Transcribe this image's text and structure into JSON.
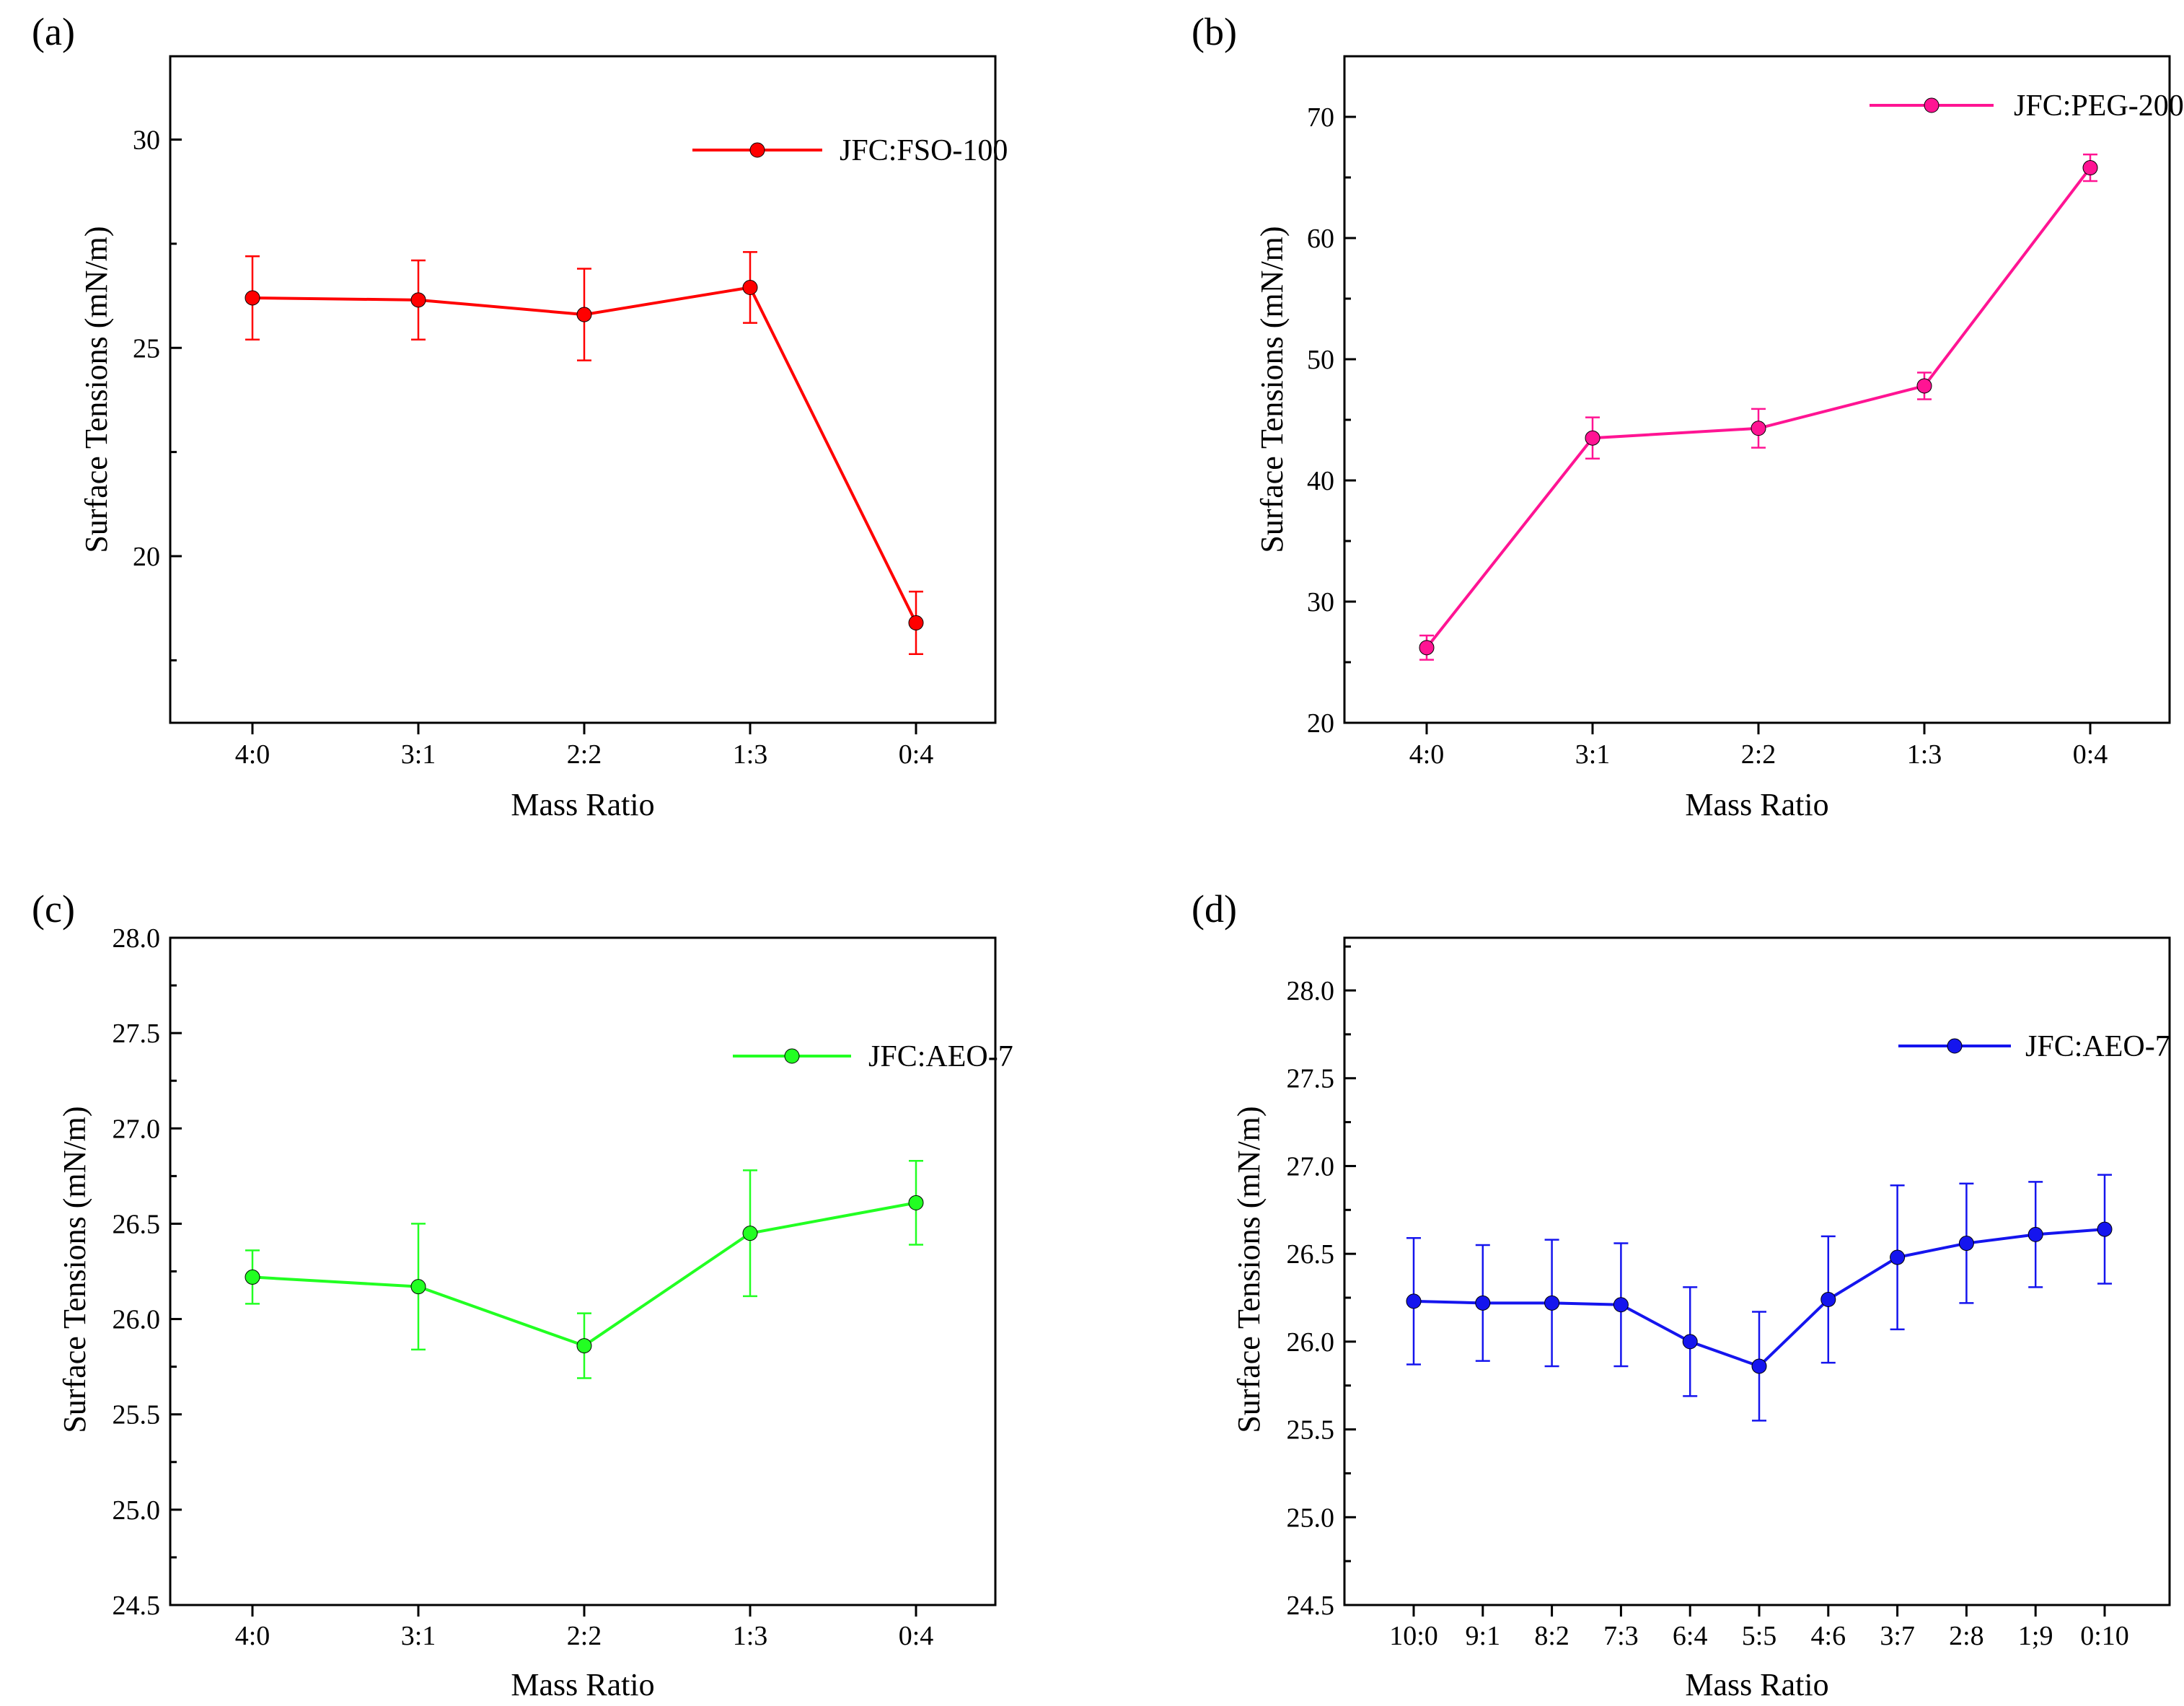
{
  "chart_data": [
    {
      "panel": "(a)",
      "type": "line",
      "xlabel": "Mass Ratio",
      "ylabel": "Surface Tensions (mN/m)",
      "categories": [
        "4:0",
        "3:1",
        "2:2",
        "1:3",
        "0:4"
      ],
      "ylim": [
        16,
        32
      ],
      "yticks": [
        20,
        25,
        30
      ],
      "ytick_labels": [
        "20",
        "25",
        "30"
      ],
      "legend_position": "top-right",
      "series": [
        {
          "name": "JFC:FSO-100",
          "color": "#ff0000",
          "values": [
            26.2,
            26.15,
            25.8,
            26.45,
            18.4
          ],
          "errors": [
            1.0,
            0.95,
            1.1,
            0.85,
            0.75
          ]
        }
      ]
    },
    {
      "panel": "(b)",
      "type": "line",
      "xlabel": "Mass Ratio",
      "ylabel": "Surface Tensions (mN/m)",
      "categories": [
        "4:0",
        "3:1",
        "2:2",
        "1:3",
        "0:4"
      ],
      "ylim": [
        20,
        75
      ],
      "yticks": [
        20,
        30,
        40,
        50,
        60,
        70
      ],
      "ytick_labels": [
        "20",
        "30",
        "40",
        "50",
        "60",
        "70"
      ],
      "legend_position": "top-right",
      "series": [
        {
          "name": "JFC:PEG-200",
          "color": "#ff1493",
          "values": [
            26.2,
            43.5,
            44.3,
            47.8,
            65.8
          ],
          "errors": [
            1.0,
            1.7,
            1.6,
            1.1,
            1.1
          ]
        }
      ]
    },
    {
      "panel": "(c)",
      "type": "line",
      "xlabel": "Mass Ratio",
      "ylabel": "Surface Tensions (mN/m)",
      "categories": [
        "4:0",
        "3:1",
        "2:2",
        "1:3",
        "0:4"
      ],
      "ylim": [
        24.5,
        28.0
      ],
      "yticks": [
        24.5,
        25.0,
        25.5,
        26.0,
        26.5,
        27.0,
        27.5,
        28.0
      ],
      "ytick_labels": [
        "24.5",
        "25.0",
        "25.5",
        "26.0",
        "26.5",
        "27.0",
        "27.5",
        "28.0"
      ],
      "legend_position": "right",
      "series": [
        {
          "name": "JFC:AEO-7",
          "color": "#22ff22",
          "values": [
            26.22,
            26.17,
            25.86,
            26.45,
            26.61
          ],
          "errors": [
            0.14,
            0.33,
            0.17,
            0.33,
            0.22
          ]
        }
      ]
    },
    {
      "panel": "(d)",
      "type": "line",
      "xlabel": "Mass Ratio",
      "ylabel": "Surface Tensions (mN/m)",
      "categories": [
        "10:0",
        "9:1",
        "8:2",
        "7:3",
        "6:4",
        "5:5",
        "4:6",
        "3:7",
        "2:8",
        "1;9",
        "0:10"
      ],
      "ylim": [
        24.5,
        28.3
      ],
      "yticks": [
        24.5,
        25.0,
        25.5,
        26.0,
        26.5,
        27.0,
        27.5,
        28.0
      ],
      "ytick_labels": [
        "24.5",
        "25.0",
        "25.5",
        "26.0",
        "26.5",
        "27.0",
        "27.5",
        "28.0"
      ],
      "legend_position": "top-right",
      "series": [
        {
          "name": "JFC:AEO-7",
          "color": "#1515ee",
          "values": [
            26.23,
            26.22,
            26.22,
            26.21,
            26.0,
            25.86,
            26.24,
            26.48,
            26.56,
            26.61,
            26.64
          ],
          "errors": [
            0.36,
            0.33,
            0.36,
            0.35,
            0.31,
            0.31,
            0.36,
            0.41,
            0.34,
            0.3,
            0.31
          ]
        }
      ]
    }
  ]
}
